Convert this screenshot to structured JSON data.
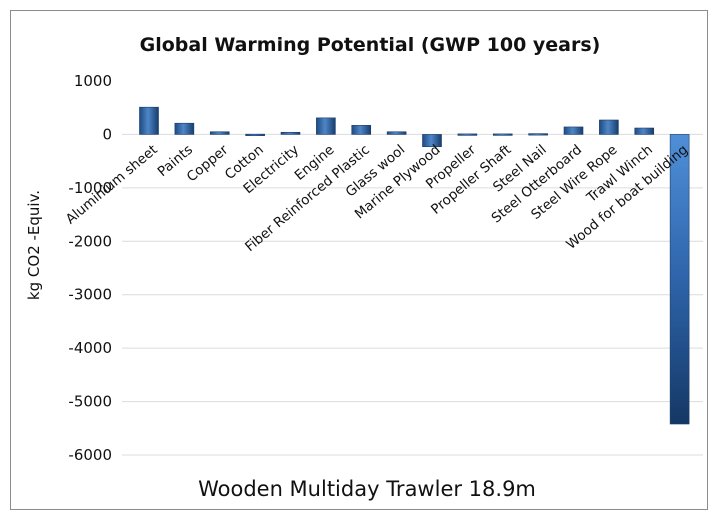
{
  "chart_data": {
    "type": "bar",
    "title": "Global Warming Potential (GWP 100 years)",
    "xlabel": "Wooden Multiday Trawler 18.9m",
    "ylabel": "kg CO2 -Equiv.",
    "ylim": [
      -6000,
      1000
    ],
    "yticks": [
      1000,
      0,
      -1000,
      -2000,
      -3000,
      -4000,
      -5000,
      -6000
    ],
    "grid": true,
    "categories": [
      "Aluminium sheet",
      "Paints",
      "Copper",
      "Cotton",
      "Electricity",
      "Engine",
      "Fiber Reinforced Plastic",
      "Glass wool",
      "Marine Plywood",
      "Propeller",
      "Propeller Shaft",
      "Steel Nail",
      "Steel Otterboard",
      "Steel Wire Rope",
      "Trawl Winch",
      "Wood for boat building"
    ],
    "values": [
      510,
      210,
      50,
      5,
      40,
      310,
      170,
      50,
      -230,
      10,
      10,
      15,
      140,
      270,
      120,
      -5420
    ],
    "bar_color": "#2b5f9e"
  }
}
